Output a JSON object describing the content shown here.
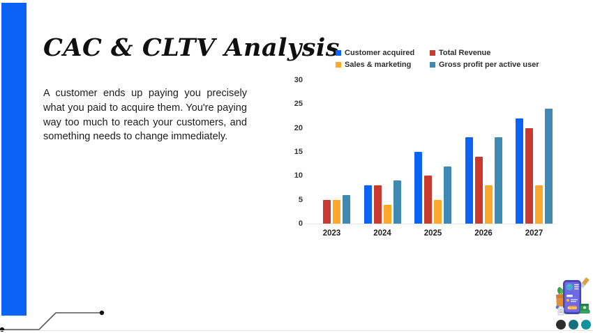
{
  "slide": {
    "title": "CAC & CLTV Analysis",
    "body_text": "A customer ends up paying you precisely what you paid to acquire them. You're paying way too much to reach your customers, and something needs to change immediately."
  },
  "chart_data": {
    "type": "bar",
    "categories": [
      "2023",
      "2024",
      "2025",
      "2026",
      "2027"
    ],
    "series": [
      {
        "name": "Customer acquired",
        "color": "#0b63f5",
        "values": [
          null,
          8,
          15,
          18,
          22
        ]
      },
      {
        "name": "Total Revenue",
        "color": "#c93a2e",
        "values": [
          5,
          8,
          10,
          14,
          20
        ]
      },
      {
        "name": "Sales & marketing",
        "color": "#ffa72b",
        "values": [
          5,
          4,
          5,
          8,
          8
        ]
      },
      {
        "name": "Gross profit per active user",
        "color": "#3e8ab3",
        "values": [
          6,
          9,
          12,
          18,
          24
        ]
      }
    ],
    "ylim": [
      0,
      30
    ],
    "yticks": [
      0,
      5,
      10,
      15,
      20,
      25,
      30
    ],
    "grid": false,
    "legend_position": "top"
  },
  "decorations": {
    "accent_bar_color": "#0b63f5",
    "dot_colors": [
      "#2d2d2d",
      "#17707c",
      "#12929e"
    ],
    "illustration": "shopping-phone-3d-sticker"
  }
}
